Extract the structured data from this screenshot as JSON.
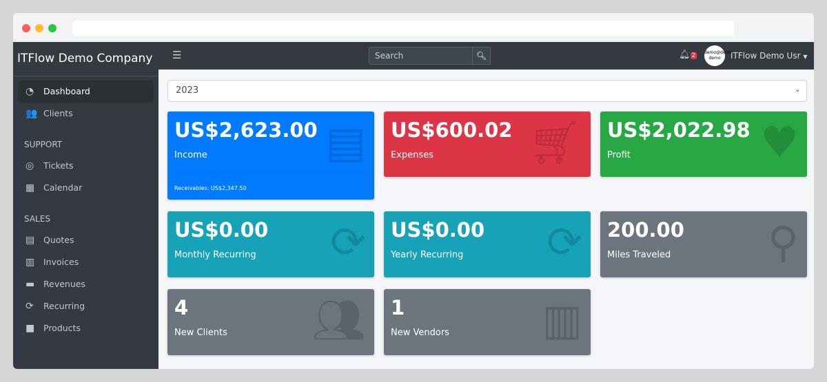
{
  "sidebar": {
    "brand": "ITFlow Demo Company",
    "items": [
      {
        "label": "Dashboard",
        "icon": "tachometer-icon"
      },
      {
        "label": "Clients",
        "icon": "users-icon"
      }
    ],
    "support_header": "SUPPORT",
    "support": [
      {
        "label": "Tickets",
        "icon": "life-ring-icon"
      },
      {
        "label": "Calendar",
        "icon": "calendar-icon"
      }
    ],
    "sales_header": "SALES",
    "sales": [
      {
        "label": "Quotes",
        "icon": "file-icon"
      },
      {
        "label": "Invoices",
        "icon": "invoice-icon"
      },
      {
        "label": "Revenues",
        "icon": "credit-card-icon"
      },
      {
        "label": "Recurring",
        "icon": "sync-icon"
      },
      {
        "label": "Products",
        "icon": "box-icon"
      }
    ]
  },
  "topbar": {
    "search_placeholder": "Search",
    "notifications": "2",
    "avatar_text": "demo@demo demo",
    "user": "ITFlow Demo Usr"
  },
  "year": "2023",
  "cards": {
    "income": {
      "value": "US$2,623.00",
      "label": "Income",
      "footer": "Receivables: US$2,347.50",
      "color": "#007bff"
    },
    "expenses": {
      "value": "US$600.02",
      "label": "Expenses",
      "color": "#dc3545"
    },
    "profit": {
      "value": "US$2,022.98",
      "label": "Profit",
      "color": "#28a745"
    },
    "monthly": {
      "value": "US$0.00",
      "label": "Monthly Recurring",
      "color": "#17a2b8"
    },
    "yearly": {
      "value": "US$0.00",
      "label": "Yearly Recurring",
      "color": "#17a2b8"
    },
    "miles": {
      "value": "200.00",
      "label": "Miles Traveled",
      "color": "#6c757d"
    },
    "clients": {
      "value": "4",
      "label": "New Clients",
      "color": "#6c757d"
    },
    "vendors": {
      "value": "1",
      "label": "New Vendors",
      "color": "#6c757d"
    }
  }
}
